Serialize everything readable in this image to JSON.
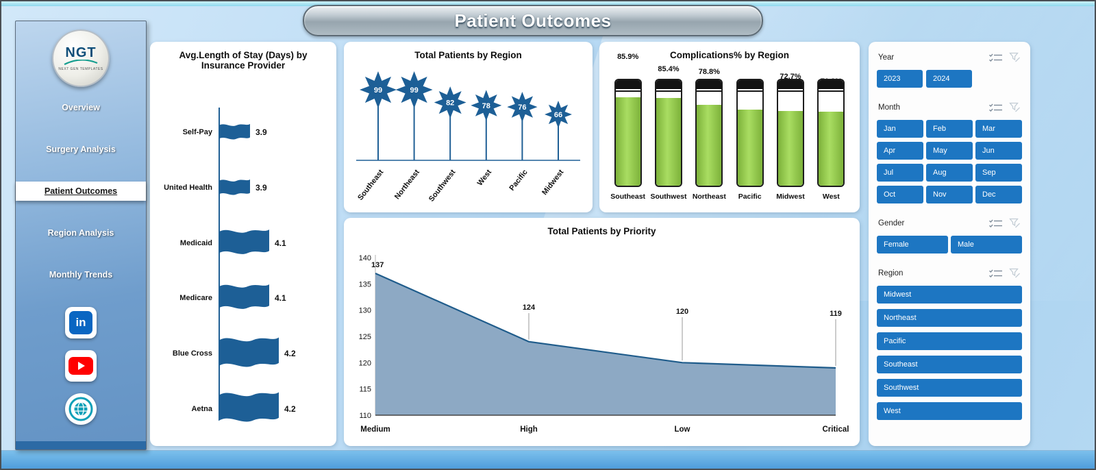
{
  "title": "Patient Outcomes",
  "sidebar": {
    "logo": "NGT",
    "logo_sub": "NEXT GEN TEMPLATES",
    "items": [
      {
        "label": "Overview",
        "active": false
      },
      {
        "label": "Surgery Analysis",
        "active": false
      },
      {
        "label": "Patient Outcomes",
        "active": true
      },
      {
        "label": "Region Analysis",
        "active": false
      },
      {
        "label": "Monthly Trends",
        "active": false
      }
    ],
    "social": {
      "linkedin_glyph": "in",
      "icons": [
        "linkedin-icon",
        "youtube-icon",
        "globe-icon"
      ]
    }
  },
  "chart_data": [
    {
      "type": "bar",
      "glyph": "flag",
      "title": "Avg.Length of Stay (Days) by Insurance Provider",
      "categories": [
        "Self-Pay",
        "United Health",
        "Medicaid",
        "Medicare",
        "Blue Cross",
        "Aetna"
      ],
      "values": [
        3.9,
        3.9,
        4.1,
        4.1,
        4.2,
        4.2
      ],
      "xlabel": "",
      "ylabel": "",
      "legend": "none",
      "grid": false
    },
    {
      "type": "bar",
      "glyph": "star",
      "title": "Total Patients by Region",
      "categories": [
        "Southeast",
        "Northeast",
        "Southwest",
        "West",
        "Pacific",
        "Midwest"
      ],
      "values": [
        99,
        99,
        82,
        78,
        76,
        66
      ],
      "xlabel": "",
      "ylabel": "",
      "legend": "none",
      "grid": false
    },
    {
      "type": "bar",
      "glyph": "battery",
      "unit": "%",
      "title": "Complications% by Region",
      "categories": [
        "Southeast",
        "Southwest",
        "Northeast",
        "Pacific",
        "Midwest",
        "West"
      ],
      "values": [
        85.9,
        85.4,
        78.8,
        73.7,
        72.7,
        71.8
      ],
      "ylim": [
        0,
        100
      ],
      "xlabel": "",
      "ylabel": "",
      "legend": "none",
      "grid": false
    },
    {
      "type": "area",
      "title": "Total Patients by Priority",
      "categories": [
        "Medium",
        "High",
        "Low",
        "Critical"
      ],
      "values": [
        137,
        124,
        120,
        119
      ],
      "ylim": [
        110,
        140
      ],
      "yticks": [
        110,
        115,
        120,
        125,
        130,
        135,
        140
      ],
      "xlabel": "",
      "ylabel": "",
      "legend": "none",
      "grid": false
    }
  ],
  "filters": {
    "year": {
      "label": "Year",
      "options": [
        "2023",
        "2024"
      ]
    },
    "month": {
      "label": "Month",
      "options": [
        "Jan",
        "Feb",
        "Mar",
        "Apr",
        "May",
        "Jun",
        "Jul",
        "Aug",
        "Sep",
        "Oct",
        "Nov",
        "Dec"
      ]
    },
    "gender": {
      "label": "Gender",
      "options": [
        "Female",
        "Male"
      ]
    },
    "region": {
      "label": "Region",
      "options": [
        "Midwest",
        "Northeast",
        "Pacific",
        "Southeast",
        "Southwest",
        "West"
      ]
    },
    "header_icons": [
      "select-all-icon",
      "clear-filter-icon"
    ]
  },
  "colors": {
    "accent_blue": "#1d76c2",
    "shape_blue": "#1d5f96",
    "battery_green": "#8dc63f",
    "area_fill": "#8da9c4",
    "area_stroke": "#1f5c8b",
    "sidebar_blue": "#6f9dcc"
  }
}
